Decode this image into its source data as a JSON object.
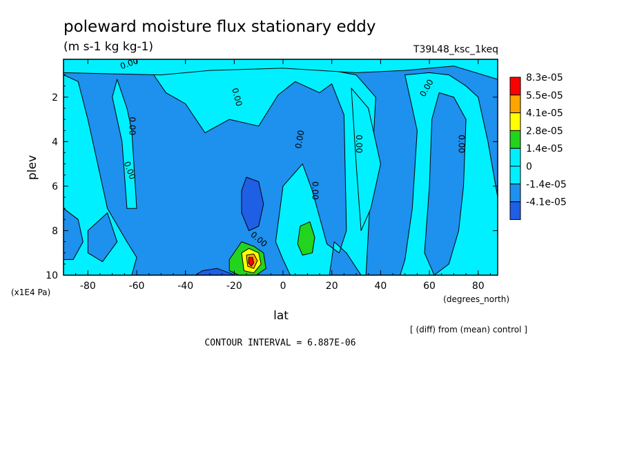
{
  "title": "poleward moisture flux stationary eddy",
  "units": "(m s-1 kg kg-1)",
  "run_label": "T39L48_ksc_1keq",
  "diff_note": "[ (diff) from (mean) control ]",
  "contour_interval_label": "CONTOUR INTERVAL = 6.887E-06",
  "contour_label_text": "0.00",
  "colors": {
    "deep_blue": "#1f5fe6",
    "mid_blue": "#1e90ee",
    "cyan": "#00f0ff",
    "green": "#22d41e",
    "yellow": "#ffff00",
    "orange": "#ffa500",
    "red": "#ff0000"
  },
  "chart_data": {
    "type": "heatmap",
    "xlabel": "lat",
    "xunit": "(degrees_north)",
    "ylabel": "plev",
    "yunit": "(x1E4 Pa)",
    "xlim": [
      -90,
      88
    ],
    "ylim": [
      10,
      0.3
    ],
    "y_inverted": true,
    "x_ticks": [
      -80,
      -60,
      -40,
      -20,
      0,
      20,
      40,
      60,
      80
    ],
    "y_ticks": [
      2,
      4,
      6,
      8,
      10
    ],
    "x_tick_labels": [
      "-80",
      "-60",
      "-40",
      "-20",
      "0",
      "20",
      "40",
      "60",
      "80"
    ],
    "y_tick_labels": [
      "2",
      "4",
      "6",
      "8",
      "10"
    ],
    "colorbar": {
      "labels": [
        "8.3e-05",
        "5.5e-05",
        "4.1e-05",
        "2.8e-05",
        "1.4e-05",
        "0",
        "-1.4e-05",
        "-4.1e-05"
      ],
      "colors": [
        "#ff0000",
        "#ffa500",
        "#ffff00",
        "#22d41e",
        "#00f0ff",
        "#00f0ff",
        "#1e90ee",
        "#1f5fe6"
      ]
    },
    "regions": [
      {
        "name": "cyan-upper-tropics",
        "value": 0,
        "color": "#00f0ff",
        "points": [
          [
            -53,
            1.0
          ],
          [
            -48,
            1.8
          ],
          [
            -40,
            2.3
          ],
          [
            -32,
            3.6
          ],
          [
            -22,
            3.0
          ],
          [
            -10,
            3.3
          ],
          [
            -2,
            1.9
          ],
          [
            5,
            1.3
          ],
          [
            15,
            1.8
          ],
          [
            20,
            1.4
          ],
          [
            25,
            2.8
          ],
          [
            26,
            8.0
          ],
          [
            23,
            9.0
          ],
          [
            18,
            8.6
          ],
          [
            12,
            6.2
          ],
          [
            8,
            5.0
          ],
          [
            0,
            6.0
          ],
          [
            -3,
            8.5
          ],
          [
            0,
            9.3
          ],
          [
            3,
            10
          ],
          [
            12,
            10
          ],
          [
            19,
            10
          ],
          [
            21,
            8.5
          ],
          [
            26,
            9.0
          ],
          [
            32,
            10
          ],
          [
            34,
            10
          ],
          [
            38,
            2.0
          ],
          [
            30,
            1.0
          ],
          [
            15,
            0.7
          ],
          [
            0,
            0.6
          ],
          [
            -20,
            0.6
          ],
          [
            -40,
            0.8
          ]
        ]
      },
      {
        "name": "cyan-upper-band",
        "value": 0,
        "color": "#00f0ff",
        "points": [
          [
            -90,
            0.9
          ],
          [
            -50,
            1.0
          ],
          [
            -30,
            0.8
          ],
          [
            0,
            0.7
          ],
          [
            30,
            0.9
          ],
          [
            50,
            0.8
          ],
          [
            70,
            0.6
          ],
          [
            88,
            1.2
          ],
          [
            88,
            0.3
          ],
          [
            -90,
            0.3
          ]
        ]
      },
      {
        "name": "cyan-left-lower",
        "value": 0,
        "color": "#00f0ff",
        "points": [
          [
            -90,
            1.0
          ],
          [
            -84,
            1.3
          ],
          [
            -80,
            3.0
          ],
          [
            -76,
            5.0
          ],
          [
            -72,
            7.0
          ],
          [
            -64,
            8.5
          ],
          [
            -60,
            9.2
          ],
          [
            -62,
            10
          ],
          [
            -90,
            10
          ]
        ]
      },
      {
        "name": "cyan-left-strip",
        "value": 0,
        "color": "#00f0ff",
        "points": [
          [
            -68,
            1.2
          ],
          [
            -64,
            2.5
          ],
          [
            -62,
            3.5
          ],
          [
            -60,
            7.0
          ],
          [
            -64,
            7.0
          ],
          [
            -66,
            4.0
          ],
          [
            -70,
            2.0
          ]
        ]
      },
      {
        "name": "cyan-right",
        "value": 0,
        "color": "#00f0ff",
        "points": [
          [
            50,
            1.0
          ],
          [
            55,
            3.5
          ],
          [
            53,
            7.0
          ],
          [
            50,
            9.3
          ],
          [
            48,
            10
          ],
          [
            88,
            10
          ],
          [
            88,
            6.5
          ],
          [
            84,
            4.0
          ],
          [
            80,
            2.0
          ],
          [
            75,
            1.5
          ],
          [
            68,
            1.0
          ],
          [
            60,
            0.9
          ]
        ]
      },
      {
        "name": "cyan-right-inner",
        "value": 0,
        "color": "#00f0ff",
        "points": [
          [
            28,
            1.6
          ],
          [
            35,
            2.5
          ],
          [
            40,
            5.0
          ],
          [
            36,
            7.0
          ],
          [
            32,
            8.0
          ],
          [
            30,
            5.0
          ]
        ]
      },
      {
        "name": "blue-left-pocket",
        "value": -1.4e-05,
        "color": "#1e90ee",
        "points": [
          [
            -90,
            7.0
          ],
          [
            -84,
            7.5
          ],
          [
            -82,
            8.5
          ],
          [
            -86,
            9.3
          ],
          [
            -90,
            9.3
          ]
        ]
      },
      {
        "name": "blue-left-pocket-2",
        "value": -1.4e-05,
        "color": "#1e90ee",
        "points": [
          [
            -80,
            8.0
          ],
          [
            -72,
            7.2
          ],
          [
            -68,
            8.5
          ],
          [
            -74,
            9.4
          ],
          [
            -80,
            9.0
          ]
        ]
      },
      {
        "name": "blue-right-column",
        "value": -1.4e-05,
        "color": "#1e90ee",
        "points": [
          [
            64,
            1.8
          ],
          [
            70,
            2.0
          ],
          [
            75,
            3.0
          ],
          [
            74,
            6.0
          ],
          [
            72,
            8.0
          ],
          [
            68,
            9.5
          ],
          [
            62,
            10
          ],
          [
            58,
            9.0
          ],
          [
            60,
            6.0
          ],
          [
            61,
            3.0
          ]
        ]
      },
      {
        "name": "deep-blue-core",
        "value": -4.1e-05,
        "color": "#1f5fe6",
        "points": [
          [
            -15,
            5.6
          ],
          [
            -10,
            5.8
          ],
          [
            -8,
            6.8
          ],
          [
            -10,
            7.8
          ],
          [
            -14,
            8.0
          ],
          [
            -17,
            7.2
          ],
          [
            -17,
            6.2
          ]
        ]
      },
      {
        "name": "deep-blue-bottom",
        "value": -4.1e-05,
        "color": "#1f5fe6",
        "points": [
          [
            -36,
            10
          ],
          [
            -33,
            9.8
          ],
          [
            -27,
            9.7
          ],
          [
            -22,
            9.9
          ],
          [
            -20,
            10
          ]
        ]
      },
      {
        "name": "positive-nh-green",
        "value": 1.4e-05,
        "color": "#22d41e",
        "points": [
          [
            7,
            7.8
          ],
          [
            11,
            7.6
          ],
          [
            13,
            8.3
          ],
          [
            12,
            9.0
          ],
          [
            8,
            9.1
          ],
          [
            6,
            8.6
          ]
        ]
      },
      {
        "name": "positive-sh-green",
        "value": 1.4e-05,
        "color": "#22d41e",
        "points": [
          [
            -22,
            9.3
          ],
          [
            -17,
            8.5
          ],
          [
            -12,
            8.7
          ],
          [
            -8,
            9.0
          ],
          [
            -7,
            9.7
          ],
          [
            -11,
            10
          ],
          [
            -18,
            10
          ],
          [
            -22,
            9.8
          ]
        ]
      },
      {
        "name": "positive-sh-yellow",
        "value": 2.8e-05,
        "color": "#ffff00",
        "points": [
          [
            -17,
            9.0
          ],
          [
            -14,
            8.8
          ],
          [
            -10,
            9.0
          ],
          [
            -9,
            9.5
          ],
          [
            -12,
            9.9
          ],
          [
            -16,
            9.8
          ]
        ]
      },
      {
        "name": "positive-sh-orange",
        "value": 4.1e-05,
        "color": "#ffa500",
        "points": [
          [
            -15,
            9.1
          ],
          [
            -12,
            9.05
          ],
          [
            -10.5,
            9.35
          ],
          [
            -12,
            9.7
          ],
          [
            -14.5,
            9.6
          ]
        ]
      },
      {
        "name": "positive-sh-red",
        "value": 8.3e-05,
        "color": "#ff0000",
        "points": [
          [
            -14,
            9.2
          ],
          [
            -12.5,
            9.2
          ],
          [
            -12,
            9.45
          ],
          [
            -13,
            9.6
          ],
          [
            -14.2,
            9.45
          ]
        ]
      }
    ],
    "zero_contour_labels": [
      {
        "lat": -63,
        "plev": 0.5,
        "angle": -20
      },
      {
        "lat": -19,
        "plev": 2.0,
        "angle": 75
      },
      {
        "lat": 7,
        "plev": 3.9,
        "angle": -80
      },
      {
        "lat": 31,
        "plev": 4.1,
        "angle": 90
      },
      {
        "lat": 59,
        "plev": 1.6,
        "angle": -60
      },
      {
        "lat": 73,
        "plev": 4.1,
        "angle": 90
      },
      {
        "lat": -63,
        "plev": 5.3,
        "angle": 70
      },
      {
        "lat": -62,
        "plev": 3.3,
        "angle": 90
      },
      {
        "lat": 13,
        "plev": 6.2,
        "angle": 90
      },
      {
        "lat": -10,
        "plev": 8.4,
        "angle": 40
      }
    ]
  }
}
